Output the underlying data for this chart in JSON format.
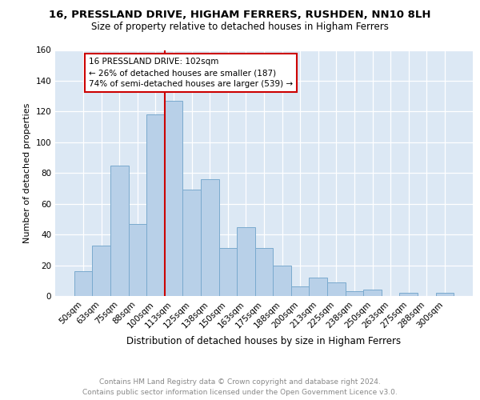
{
  "title_line1": "16, PRESSLAND DRIVE, HIGHAM FERRERS, RUSHDEN, NN10 8LH",
  "title_line2": "Size of property relative to detached houses in Higham Ferrers",
  "xlabel": "Distribution of detached houses by size in Higham Ferrers",
  "ylabel": "Number of detached properties",
  "footer_line1": "Contains HM Land Registry data © Crown copyright and database right 2024.",
  "footer_line2": "Contains public sector information licensed under the Open Government Licence v3.0.",
  "bar_labels": [
    "50sqm",
    "63sqm",
    "75sqm",
    "88sqm",
    "100sqm",
    "113sqm",
    "125sqm",
    "138sqm",
    "150sqm",
    "163sqm",
    "175sqm",
    "188sqm",
    "200sqm",
    "213sqm",
    "225sqm",
    "238sqm",
    "250sqm",
    "263sqm",
    "275sqm",
    "288sqm",
    "300sqm"
  ],
  "bar_values": [
    16,
    33,
    85,
    47,
    118,
    127,
    69,
    76,
    31,
    45,
    31,
    20,
    6,
    12,
    9,
    3,
    4,
    0,
    2,
    0,
    2
  ],
  "bar_color": "#b8d0e8",
  "bar_edge_color": "#7aaace",
  "vline_color": "#cc0000",
  "annotation_text": "16 PRESSLAND DRIVE: 102sqm\n← 26% of detached houses are smaller (187)\n74% of semi-detached houses are larger (539) →",
  "annotation_box_color": "#ffffff",
  "annotation_box_edge": "#cc0000",
  "ylim": [
    0,
    160
  ],
  "yticks": [
    0,
    20,
    40,
    60,
    80,
    100,
    120,
    140,
    160
  ],
  "fig_bg_color": "#ffffff",
  "plot_bg_color": "#dce8f4",
  "grid_color": "#ffffff",
  "title1_fontsize": 9.5,
  "title2_fontsize": 8.5,
  "ylabel_fontsize": 8,
  "xlabel_fontsize": 8.5,
  "tick_fontsize": 7.5,
  "footer_fontsize": 6.5,
  "annot_fontsize": 7.5
}
